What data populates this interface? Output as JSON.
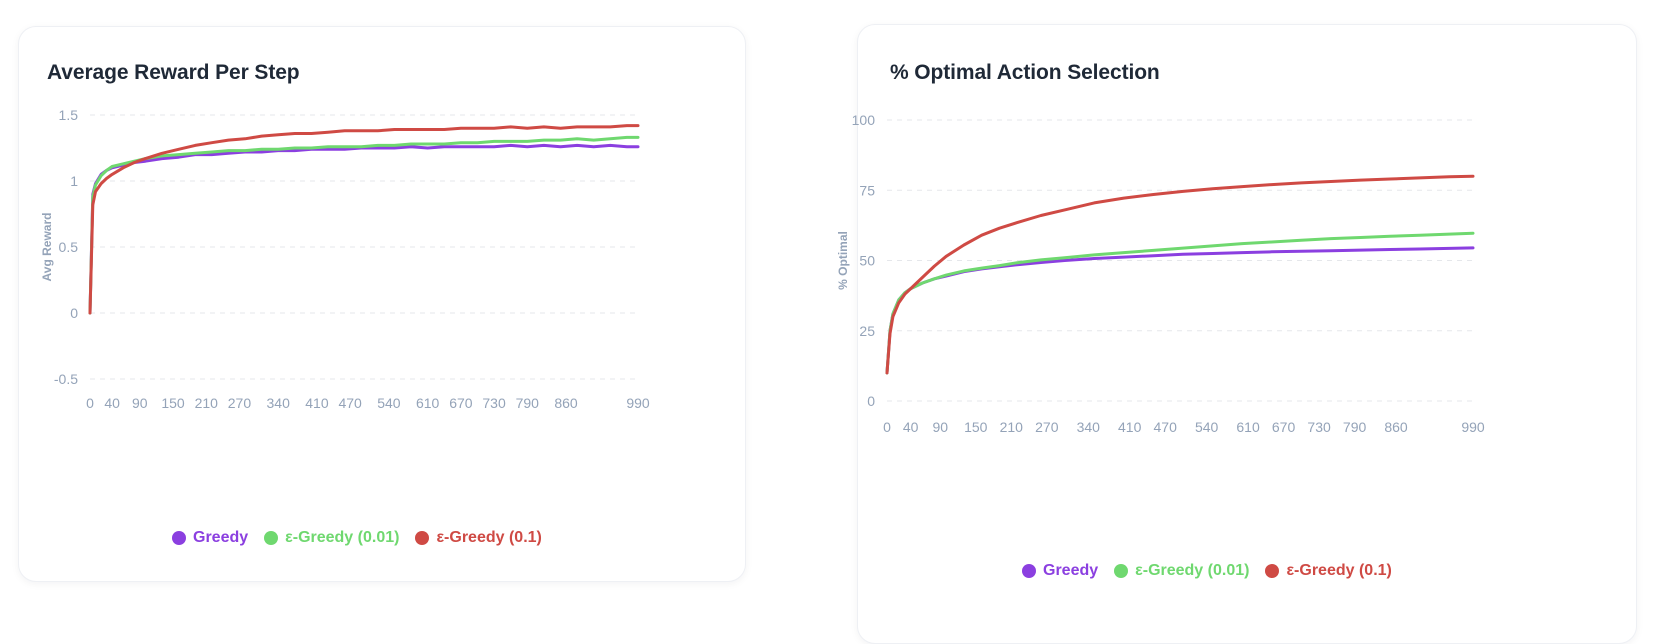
{
  "colors": {
    "greedy": "#8b3fe0",
    "eps001": "#6fd86f",
    "eps01": "#cf4a44"
  },
  "chart_data": [
    {
      "type": "line",
      "title": "Average Reward Per Step",
      "xlabel": "",
      "ylabel": "Avg Reward",
      "xlim": [
        0,
        990
      ],
      "ylim": [
        -0.5,
        1.5
      ],
      "yticks": [
        -0.5,
        0,
        0.5,
        1,
        1.5
      ],
      "ytick_labels": [
        "-0.5",
        "0",
        "0.5",
        "1",
        "1.5"
      ],
      "xticks": [
        0,
        40,
        90,
        150,
        210,
        270,
        340,
        410,
        470,
        540,
        610,
        670,
        730,
        790,
        860,
        990
      ],
      "xtick_labels": [
        "0",
        "40",
        "90",
        "150",
        "210",
        "270",
        "340",
        "410",
        "470",
        "540",
        "610",
        "670",
        "730",
        "790",
        "860",
        "990"
      ],
      "grid": true,
      "legend": "bottom",
      "series": [
        {
          "name": "Greedy",
          "color_key": "greedy",
          "x": [
            0,
            5,
            10,
            20,
            30,
            40,
            60,
            80,
            100,
            130,
            160,
            190,
            220,
            250,
            280,
            310,
            340,
            370,
            400,
            430,
            460,
            490,
            520,
            550,
            580,
            610,
            640,
            670,
            700,
            730,
            760,
            790,
            820,
            850,
            880,
            910,
            940,
            970,
            990
          ],
          "y": [
            0,
            0.9,
            0.98,
            1.05,
            1.08,
            1.1,
            1.12,
            1.14,
            1.15,
            1.17,
            1.18,
            1.2,
            1.2,
            1.21,
            1.22,
            1.22,
            1.23,
            1.23,
            1.24,
            1.24,
            1.24,
            1.25,
            1.25,
            1.25,
            1.26,
            1.25,
            1.26,
            1.26,
            1.26,
            1.26,
            1.27,
            1.26,
            1.27,
            1.26,
            1.27,
            1.26,
            1.27,
            1.26,
            1.26
          ]
        },
        {
          "name": "ε-Greedy (0.01)",
          "color_key": "eps001",
          "x": [
            0,
            5,
            10,
            20,
            30,
            40,
            60,
            80,
            100,
            130,
            160,
            190,
            220,
            250,
            280,
            310,
            340,
            370,
            400,
            430,
            460,
            490,
            520,
            550,
            580,
            610,
            640,
            670,
            700,
            730,
            760,
            790,
            820,
            850,
            880,
            910,
            940,
            970,
            990
          ],
          "y": [
            0,
            0.88,
            0.97,
            1.04,
            1.08,
            1.11,
            1.13,
            1.15,
            1.17,
            1.19,
            1.2,
            1.21,
            1.22,
            1.23,
            1.23,
            1.24,
            1.24,
            1.25,
            1.25,
            1.26,
            1.26,
            1.26,
            1.27,
            1.27,
            1.28,
            1.28,
            1.28,
            1.29,
            1.29,
            1.3,
            1.3,
            1.3,
            1.31,
            1.31,
            1.32,
            1.31,
            1.32,
            1.33,
            1.33
          ]
        },
        {
          "name": "ε-Greedy (0.1)",
          "color_key": "eps01",
          "x": [
            0,
            5,
            10,
            20,
            30,
            40,
            60,
            80,
            100,
            130,
            160,
            190,
            220,
            250,
            280,
            310,
            340,
            370,
            400,
            430,
            460,
            490,
            520,
            550,
            580,
            610,
            640,
            670,
            700,
            730,
            760,
            790,
            820,
            850,
            880,
            910,
            940,
            970,
            990
          ],
          "y": [
            0,
            0.82,
            0.92,
            0.98,
            1.02,
            1.05,
            1.1,
            1.14,
            1.17,
            1.21,
            1.24,
            1.27,
            1.29,
            1.31,
            1.32,
            1.34,
            1.35,
            1.36,
            1.36,
            1.37,
            1.38,
            1.38,
            1.38,
            1.39,
            1.39,
            1.39,
            1.39,
            1.4,
            1.4,
            1.4,
            1.41,
            1.4,
            1.41,
            1.4,
            1.41,
            1.41,
            1.41,
            1.42,
            1.42
          ]
        }
      ]
    },
    {
      "type": "line",
      "title": "% Optimal Action Selection",
      "xlabel": "",
      "ylabel": "% Optimal",
      "xlim": [
        0,
        990
      ],
      "ylim": [
        0,
        100
      ],
      "yticks": [
        0,
        25,
        50,
        75,
        100
      ],
      "ytick_labels": [
        "0",
        "25",
        "50",
        "75",
        "100"
      ],
      "xticks": [
        0,
        40,
        90,
        150,
        210,
        270,
        340,
        410,
        470,
        540,
        610,
        670,
        730,
        790,
        860,
        990
      ],
      "xtick_labels": [
        "0",
        "40",
        "90",
        "150",
        "210",
        "270",
        "340",
        "410",
        "470",
        "540",
        "610",
        "670",
        "730",
        "790",
        "860",
        "990"
      ],
      "grid": true,
      "legend": "bottom",
      "series": [
        {
          "name": "Greedy",
          "color_key": "greedy",
          "x": [
            0,
            5,
            10,
            20,
            30,
            40,
            60,
            80,
            100,
            130,
            160,
            190,
            220,
            260,
            300,
            350,
            400,
            450,
            500,
            550,
            600,
            650,
            700,
            750,
            800,
            850,
            900,
            950,
            990
          ],
          "y": [
            10,
            25,
            31,
            36,
            38.5,
            40,
            42,
            43.5,
            44.5,
            46,
            47,
            47.8,
            48.5,
            49.3,
            50,
            50.7,
            51.2,
            51.7,
            52.2,
            52.5,
            52.8,
            53.1,
            53.3,
            53.5,
            53.7,
            53.9,
            54.1,
            54.3,
            54.5
          ]
        },
        {
          "name": "ε-Greedy (0.01)",
          "color_key": "eps001",
          "x": [
            0,
            5,
            10,
            20,
            30,
            40,
            60,
            80,
            100,
            130,
            160,
            190,
            220,
            260,
            300,
            350,
            400,
            450,
            500,
            550,
            600,
            650,
            700,
            750,
            800,
            850,
            900,
            950,
            990
          ],
          "y": [
            10,
            25,
            31,
            36,
            38.5,
            40,
            42,
            43.5,
            44.8,
            46.3,
            47.3,
            48.2,
            49.2,
            50.2,
            51,
            52,
            52.8,
            53.6,
            54.4,
            55.2,
            56,
            56.6,
            57.2,
            57.8,
            58.2,
            58.6,
            59,
            59.4,
            59.7
          ]
        },
        {
          "name": "ε-Greedy (0.1)",
          "color_key": "eps01",
          "x": [
            0,
            5,
            10,
            20,
            30,
            40,
            60,
            80,
            100,
            130,
            160,
            190,
            220,
            260,
            300,
            350,
            400,
            450,
            500,
            550,
            600,
            650,
            700,
            750,
            800,
            850,
            900,
            950,
            990
          ],
          "y": [
            10,
            24,
            30,
            35,
            38,
            40,
            44,
            48,
            51.5,
            55.5,
            59,
            61.5,
            63.5,
            66,
            68,
            70.5,
            72.2,
            73.5,
            74.6,
            75.5,
            76.3,
            77,
            77.6,
            78.1,
            78.6,
            79,
            79.4,
            79.8,
            80
          ]
        }
      ]
    }
  ],
  "legend_labels": [
    "Greedy",
    "ε-Greedy (0.01)",
    "ε-Greedy (0.1)"
  ]
}
